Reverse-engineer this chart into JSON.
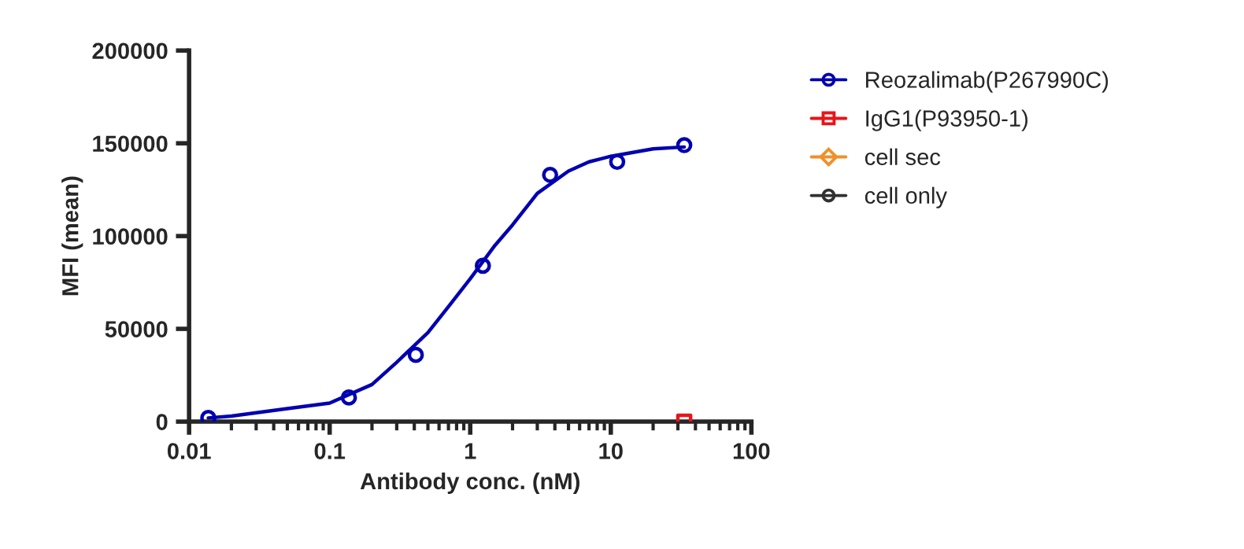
{
  "chart_data": {
    "type": "scatter",
    "xlabel": "Antibody conc. (nM)",
    "ylabel": "MFI (mean)",
    "log": "x",
    "xlim": [
      0.01,
      100
    ],
    "xticks": [
      0.01,
      0.1,
      1,
      10,
      100
    ],
    "ylim": [
      0,
      200000
    ],
    "yticks": [
      0,
      50000,
      100000,
      150000,
      200000
    ],
    "grid": false,
    "legend": "right",
    "series": [
      {
        "name": "Reozalimab(P267990C)",
        "color": "#0000b0",
        "marker": "circle",
        "x": [
          0.0137,
          0.137,
          0.41,
          1.23,
          3.7,
          11.1,
          33.3
        ],
        "values": [
          2000,
          13000,
          36000,
          84000,
          133000,
          140000,
          149000
        ]
      },
      {
        "color": "#0000b0",
        "type": "line",
        "marker": "none",
        "x": [
          0.0137,
          0.02,
          0.05,
          0.1,
          0.2,
          0.3,
          0.5,
          0.7,
          1,
          1.5,
          2,
          3,
          5,
          7,
          10,
          20,
          33.3
        ],
        "values": [
          2000,
          3000,
          7000,
          10000,
          20000,
          32000,
          48000,
          62000,
          77000,
          95000,
          106000,
          123000,
          135000,
          140000,
          143000,
          147000,
          148000
        ]
      },
      {
        "name": "IgG1(P93950-1)",
        "color": "#e8141a",
        "type": "scatter",
        "marker": "square",
        "x": [
          33.3
        ],
        "values": [
          0
        ]
      },
      {
        "name": "cell sec",
        "color": "#f0902a",
        "type": "scatter",
        "marker": "diamond"
      },
      {
        "name": "cell only",
        "color": "#303030",
        "type": "scatter",
        "marker": "circle"
      }
    ]
  }
}
